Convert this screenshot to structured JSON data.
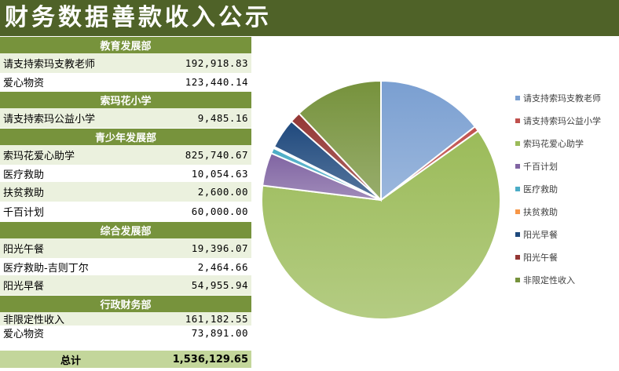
{
  "title": "财务数据善款收入公示",
  "colors": {
    "header": "#4f6228",
    "section": "#77933c",
    "shade": "#ebf1de",
    "total": "#c3d69b"
  },
  "table": {
    "sections": [
      {
        "name": "教育发展部",
        "rows": [
          {
            "label": "请支持索玛支教老师",
            "value": "192,918.83"
          },
          {
            "label": "爱心物资",
            "value": "123,440.14"
          }
        ]
      },
      {
        "name": "索玛花小学",
        "rows": [
          {
            "label": "请支持索玛公益小学",
            "value": "9,485.16"
          }
        ]
      },
      {
        "name": "青少年发展部",
        "rows": [
          {
            "label": "索玛花爱心助学",
            "value": "825,740.67"
          },
          {
            "label": "医疗救助",
            "value": "10,054.63"
          },
          {
            "label": "扶贫救助",
            "value": "2,600.00"
          },
          {
            "label": "千百计划",
            "value": "60,000.00"
          }
        ]
      },
      {
        "name": "综合发展部",
        "rows": [
          {
            "label": "阳光午餐",
            "value": "19,396.07"
          },
          {
            "label": "医疗救助-吉则丁尔",
            "value": "2,464.66"
          },
          {
            "label": "阳光早餐",
            "value": "54,955.94"
          }
        ]
      },
      {
        "name": "行政财务部",
        "rows": [
          {
            "label": "非限定性收入",
            "value": "161,182.55"
          },
          {
            "label": "爱心物资",
            "value": "73,891.00"
          }
        ]
      }
    ],
    "total_label": "总计",
    "total_value": "1,536,129.65"
  },
  "chart_data": {
    "type": "pie",
    "categories": [
      "请支持索玛支教老师",
      "请支持索玛公益小学",
      "索玛花爱心助学",
      "千百计划",
      "医疗救助",
      "扶贫救助",
      "阳光早餐",
      "阳光午餐",
      "非限定性收入"
    ],
    "values": [
      192918.83,
      9485.16,
      825740.67,
      60000.0,
      10054.63,
      2600.0,
      54955.94,
      19396.07,
      161182.55
    ],
    "colors": [
      "#7a9fd1",
      "#c0504d",
      "#9bbb59",
      "#8064a2",
      "#4bacc6",
      "#f79646",
      "#1f497d",
      "#943634",
      "#76923c"
    ],
    "legend_position": "right"
  }
}
